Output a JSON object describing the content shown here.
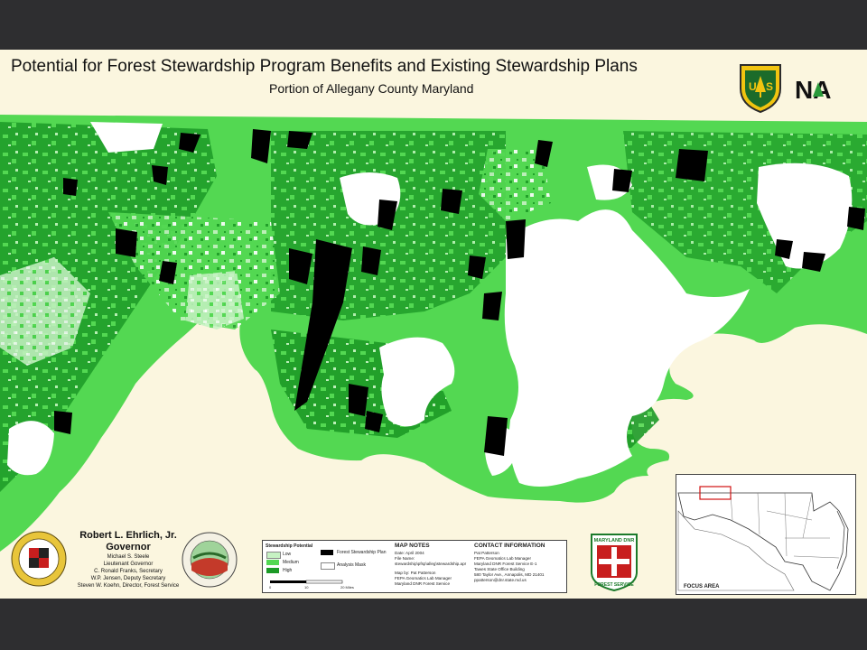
{
  "header": {
    "title": "Potential for Forest Stewardship Program Benefits and Existing Stewardship Plans",
    "subtitle": "Portion of Allegany County Maryland"
  },
  "logos": {
    "shield": "forest-service-shield",
    "na": "NA"
  },
  "colors": {
    "high": "#1c9a26",
    "medium": "#53d852",
    "low": "#c6f2c3",
    "plan": "#000000",
    "mask": "#ffffff",
    "outside": "#fbf6df"
  },
  "inset": {
    "label": "FOCUS AREA"
  },
  "governor": {
    "name": "Robert L. Ehrlich, Jr.",
    "title": "Governor",
    "lines": [
      "Michael S. Steele",
      "Lieutenant Governor",
      "C. Ronald Franks, Secretary",
      "W.P. Jensen, Deputy Secretary",
      "Steven W. Koehn, Director, Forest Service"
    ]
  },
  "legend": {
    "heading": "Stewardship Potential",
    "items": [
      "Low",
      "Medium",
      "High"
    ],
    "plan_label": "Forest Stewardship Plan",
    "mask_label": "Analysis Mask",
    "scale_ticks": [
      "0",
      "10",
      "20 Miles"
    ]
  },
  "map_notes": {
    "heading": "MAP NOTES",
    "lines": [
      "Date: April 2004",
      "File Name:",
      "stewardship\\pfsp\\alleg\\stewardship.apr",
      "Map by: Pat Patterson",
      "FEPA Geomatics Lab Manager",
      "Maryland DNR Forest Service"
    ]
  },
  "contact": {
    "heading": "CONTACT INFORMATION",
    "lines": [
      "Pat Patterson",
      "FEPA Geomatics Lab Manager",
      "Maryland DNR Forest Service E-1",
      "Tawes State Office Building",
      "580 Taylor Ave., Annapolis, MD 21401",
      "ppatterson@dnr.state.md.us"
    ]
  },
  "dnr": {
    "top": "MARYLAND DNR",
    "bottom": "FOREST SERVICE"
  }
}
